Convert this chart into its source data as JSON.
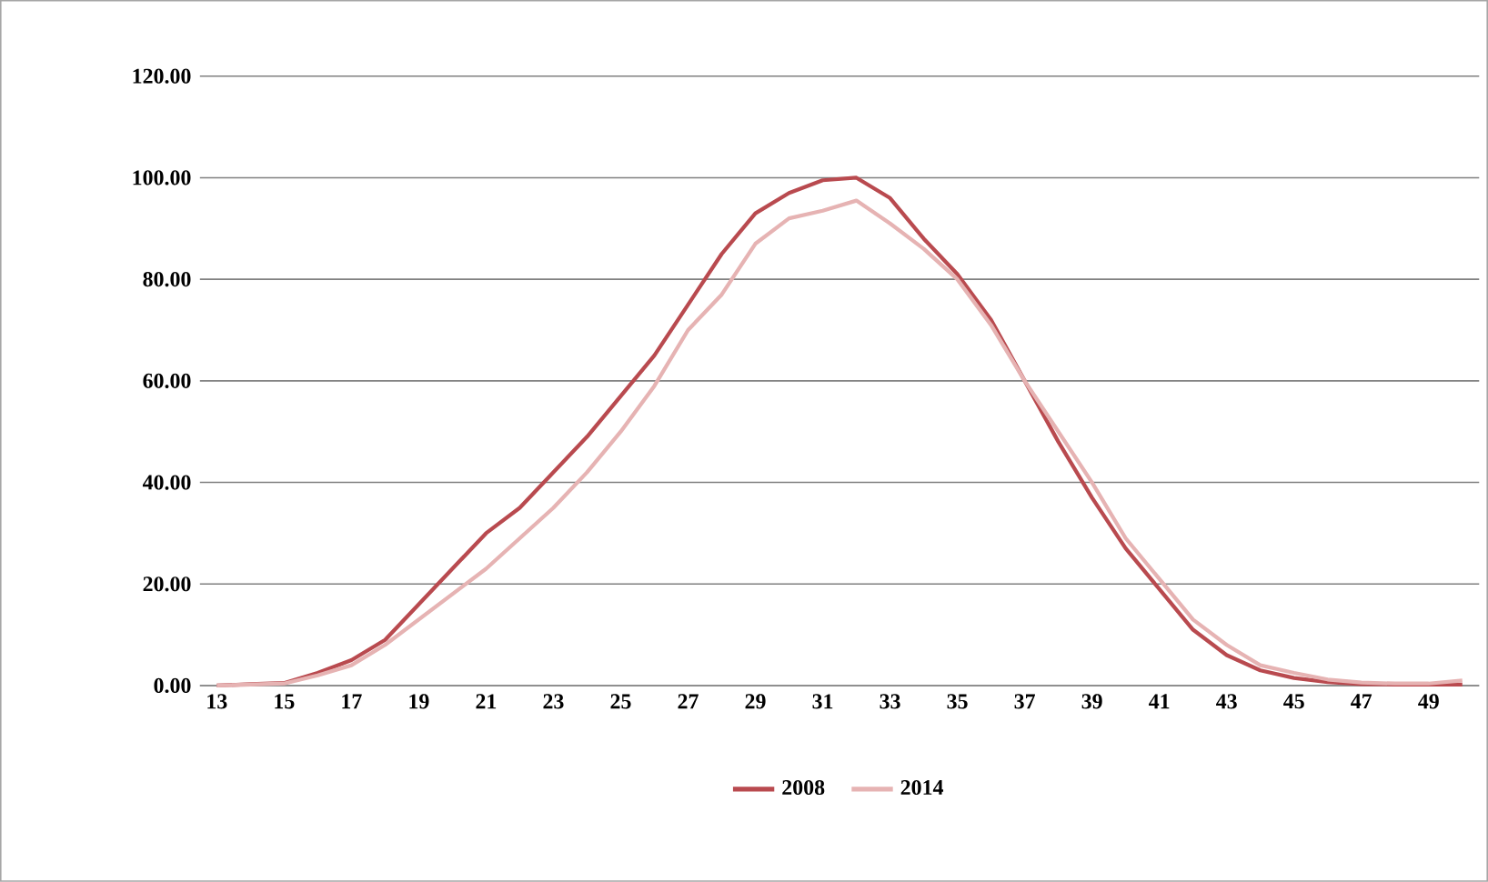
{
  "chart_data": {
    "type": "line",
    "x": [
      13,
      14,
      15,
      16,
      17,
      18,
      19,
      20,
      21,
      22,
      23,
      24,
      25,
      26,
      27,
      28,
      29,
      30,
      31,
      32,
      33,
      34,
      35,
      36,
      37,
      38,
      39,
      40,
      41,
      42,
      43,
      44,
      45,
      46,
      47,
      48,
      49,
      50
    ],
    "xlim": [
      12.5,
      50.5
    ],
    "xticks": [
      13,
      15,
      17,
      19,
      21,
      23,
      25,
      27,
      29,
      31,
      33,
      35,
      37,
      39,
      41,
      43,
      45,
      47,
      49
    ],
    "ylim": [
      0,
      120
    ],
    "yticks": [
      {
        "value": 0,
        "label": "0.00"
      },
      {
        "value": 20,
        "label": "20.00"
      },
      {
        "value": 40,
        "label": "40.00"
      },
      {
        "value": 60,
        "label": "60.00"
      },
      {
        "value": 80,
        "label": "80.00"
      },
      {
        "value": 100,
        "label": "100.00"
      },
      {
        "value": 120,
        "label": "120.00"
      }
    ],
    "grid": "y",
    "legend": "bottom",
    "marker": "none",
    "line_style": "solid",
    "series": [
      {
        "name": "2008",
        "color": "#b94a4f",
        "values": [
          0,
          0.3,
          0.5,
          2.5,
          5,
          9,
          16,
          23,
          30,
          35,
          42,
          49,
          57,
          65,
          75,
          85,
          93,
          97,
          99.5,
          100,
          96,
          88,
          81,
          72,
          60,
          48,
          37,
          27,
          19,
          11,
          6,
          3,
          1.5,
          0.7,
          0.3,
          0.2,
          0.2,
          0.2
        ]
      },
      {
        "name": "2014",
        "color": "#e6b3b3",
        "values": [
          0,
          0.2,
          0.4,
          2,
          4,
          8,
          13,
          18,
          23,
          29,
          35,
          42,
          50,
          59,
          70,
          77,
          87,
          92,
          93.5,
          95.5,
          91,
          86,
          80,
          71,
          60,
          50,
          40,
          29,
          21,
          13,
          8,
          4,
          2.5,
          1.2,
          0.6,
          0.4,
          0.4,
          1.0
        ]
      }
    ]
  }
}
